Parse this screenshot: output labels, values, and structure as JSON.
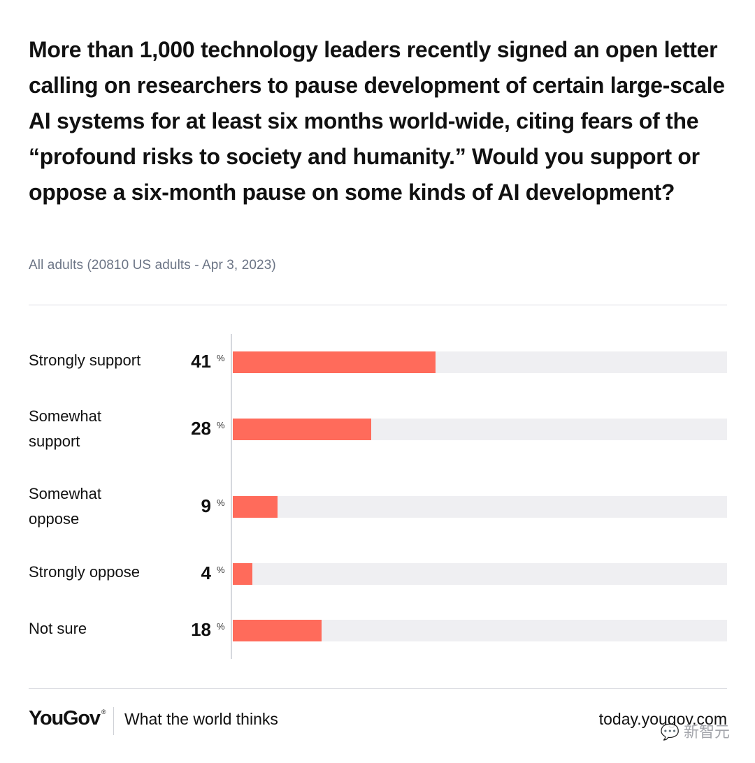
{
  "question": "More than 1,000 technology leaders recently signed an open letter calling on researchers to pause development of certain large-scale AI systems for at least six months world-wide, citing fears of the “profound risks to society and humanity.” Would you support or oppose a six-month pause on some kinds of AI development?",
  "subtitle": "All adults (20810 US adults - Apr 3, 2023)",
  "chart_data": {
    "type": "bar",
    "orientation": "horizontal",
    "title": "More than 1,000 technology leaders recently signed an open letter calling on researchers to pause development of certain large-scale AI systems for at least six months world-wide, citing fears of the “profound risks to society and humanity.” Would you support or oppose a six-month pause on some kinds of AI development?",
    "subtitle": "All adults (20810 US adults - Apr 3, 2023)",
    "categories": [
      "Strongly support",
      "Somewhat support",
      "Somewhat oppose",
      "Strongly oppose",
      "Not sure"
    ],
    "values": [
      41,
      28,
      9,
      4,
      18
    ],
    "value_labels": [
      "41",
      "28",
      "9",
      "4",
      "18"
    ],
    "unit": "%",
    "xlim": [
      0,
      100
    ],
    "grid": false,
    "bar_color": "#ff6b5b",
    "track_color": "#efeff2"
  },
  "footer": {
    "brand": "YouGov",
    "brand_mark": "®",
    "tagline": "What the world thinks",
    "url": "today.yougov.com"
  },
  "watermark": "新智元",
  "colors": {
    "accent": "#ff6b5b",
    "text": "#111111",
    "muted": "#6b7485",
    "divider": "#dcdde2"
  }
}
